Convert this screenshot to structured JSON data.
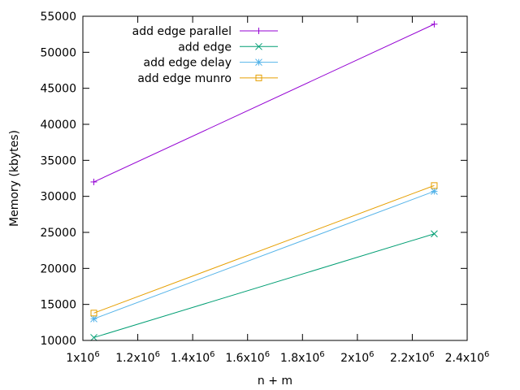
{
  "chart_data": {
    "type": "line",
    "xlabel": "n + m",
    "ylabel": "Memory (kbytes)",
    "xlim": [
      1000000,
      2400000
    ],
    "ylim": [
      10000,
      55000
    ],
    "x_ticks": [
      {
        "value": 1000000,
        "label": "1x10",
        "exp": "6"
      },
      {
        "value": 1200000,
        "label": "1.2x10",
        "exp": "6"
      },
      {
        "value": 1400000,
        "label": "1.4x10",
        "exp": "6"
      },
      {
        "value": 1600000,
        "label": "1.6x10",
        "exp": "6"
      },
      {
        "value": 1800000,
        "label": "1.8x10",
        "exp": "6"
      },
      {
        "value": 2000000,
        "label": "2x10",
        "exp": "6"
      },
      {
        "value": 2200000,
        "label": "2.2x10",
        "exp": "6"
      },
      {
        "value": 2400000,
        "label": "2.4x10",
        "exp": "6"
      }
    ],
    "y_ticks": [
      {
        "value": 10000,
        "label": "10000"
      },
      {
        "value": 15000,
        "label": "15000"
      },
      {
        "value": 20000,
        "label": "20000"
      },
      {
        "value": 25000,
        "label": "25000"
      },
      {
        "value": 30000,
        "label": "30000"
      },
      {
        "value": 35000,
        "label": "35000"
      },
      {
        "value": 40000,
        "label": "40000"
      },
      {
        "value": 45000,
        "label": "45000"
      },
      {
        "value": 50000,
        "label": "50000"
      },
      {
        "value": 55000,
        "label": "55000"
      }
    ],
    "grid": false,
    "legend_position": "top-left",
    "series": [
      {
        "name": "add edge parallel",
        "color": "#9400d3",
        "marker": "plus",
        "x": [
          1040000,
          2280000
        ],
        "y": [
          32000,
          53900
        ]
      },
      {
        "name": "add edge",
        "color": "#009e73",
        "marker": "cross",
        "x": [
          1040000,
          2280000
        ],
        "y": [
          10400,
          24800
        ]
      },
      {
        "name": "add edge delay",
        "color": "#56b4e9",
        "marker": "star",
        "x": [
          1040000,
          2280000
        ],
        "y": [
          13000,
          30700
        ]
      },
      {
        "name": "add edge munro",
        "color": "#e69f00",
        "marker": "square",
        "x": [
          1040000,
          2280000
        ],
        "y": [
          13800,
          31500
        ]
      }
    ]
  }
}
